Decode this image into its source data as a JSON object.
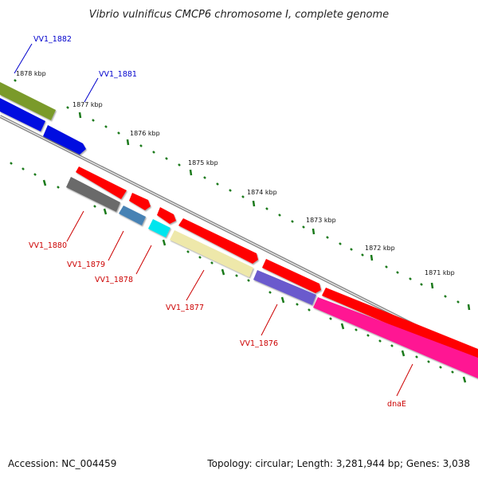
{
  "title": "Vibrio vulnificus CMCP6 chromosome I, complete genome",
  "accession": "Accession: NC_004459",
  "topology": "Topology: circular; Length: 3,281,944 bp; Genes: 3,038",
  "scale_labels": [
    "1878 kbp",
    "1877 kbp",
    "1876 kbp",
    "1875 kbp",
    "1874 kbp",
    "1873 kbp",
    "1872 kbp",
    "1871 kbp"
  ],
  "genes_forward": [
    {
      "label": "VV1_1882",
      "color": "#7a9a2a"
    },
    {
      "label": "VV1_1881",
      "color": "#0010e0"
    }
  ],
  "genes_reverse": [
    {
      "label": "VV1_1880",
      "color": "#6a6a6a"
    },
    {
      "label": "VV1_1879",
      "color": "#4682b4"
    },
    {
      "label": "VV1_1878",
      "color": "#00e5ee"
    },
    {
      "label": "VV1_1877",
      "color": "#eee8aa"
    },
    {
      "label": "VV1_1876",
      "color": "#6a5acd"
    },
    {
      "label": "dnaE",
      "color": "#ff1493"
    }
  ],
  "colors": {
    "forward_label": "#0000cc",
    "reverse_label": "#cc0000",
    "orf": "#ff0000",
    "backbone": "#8c8c8c",
    "tick": "#1a7a1a"
  }
}
